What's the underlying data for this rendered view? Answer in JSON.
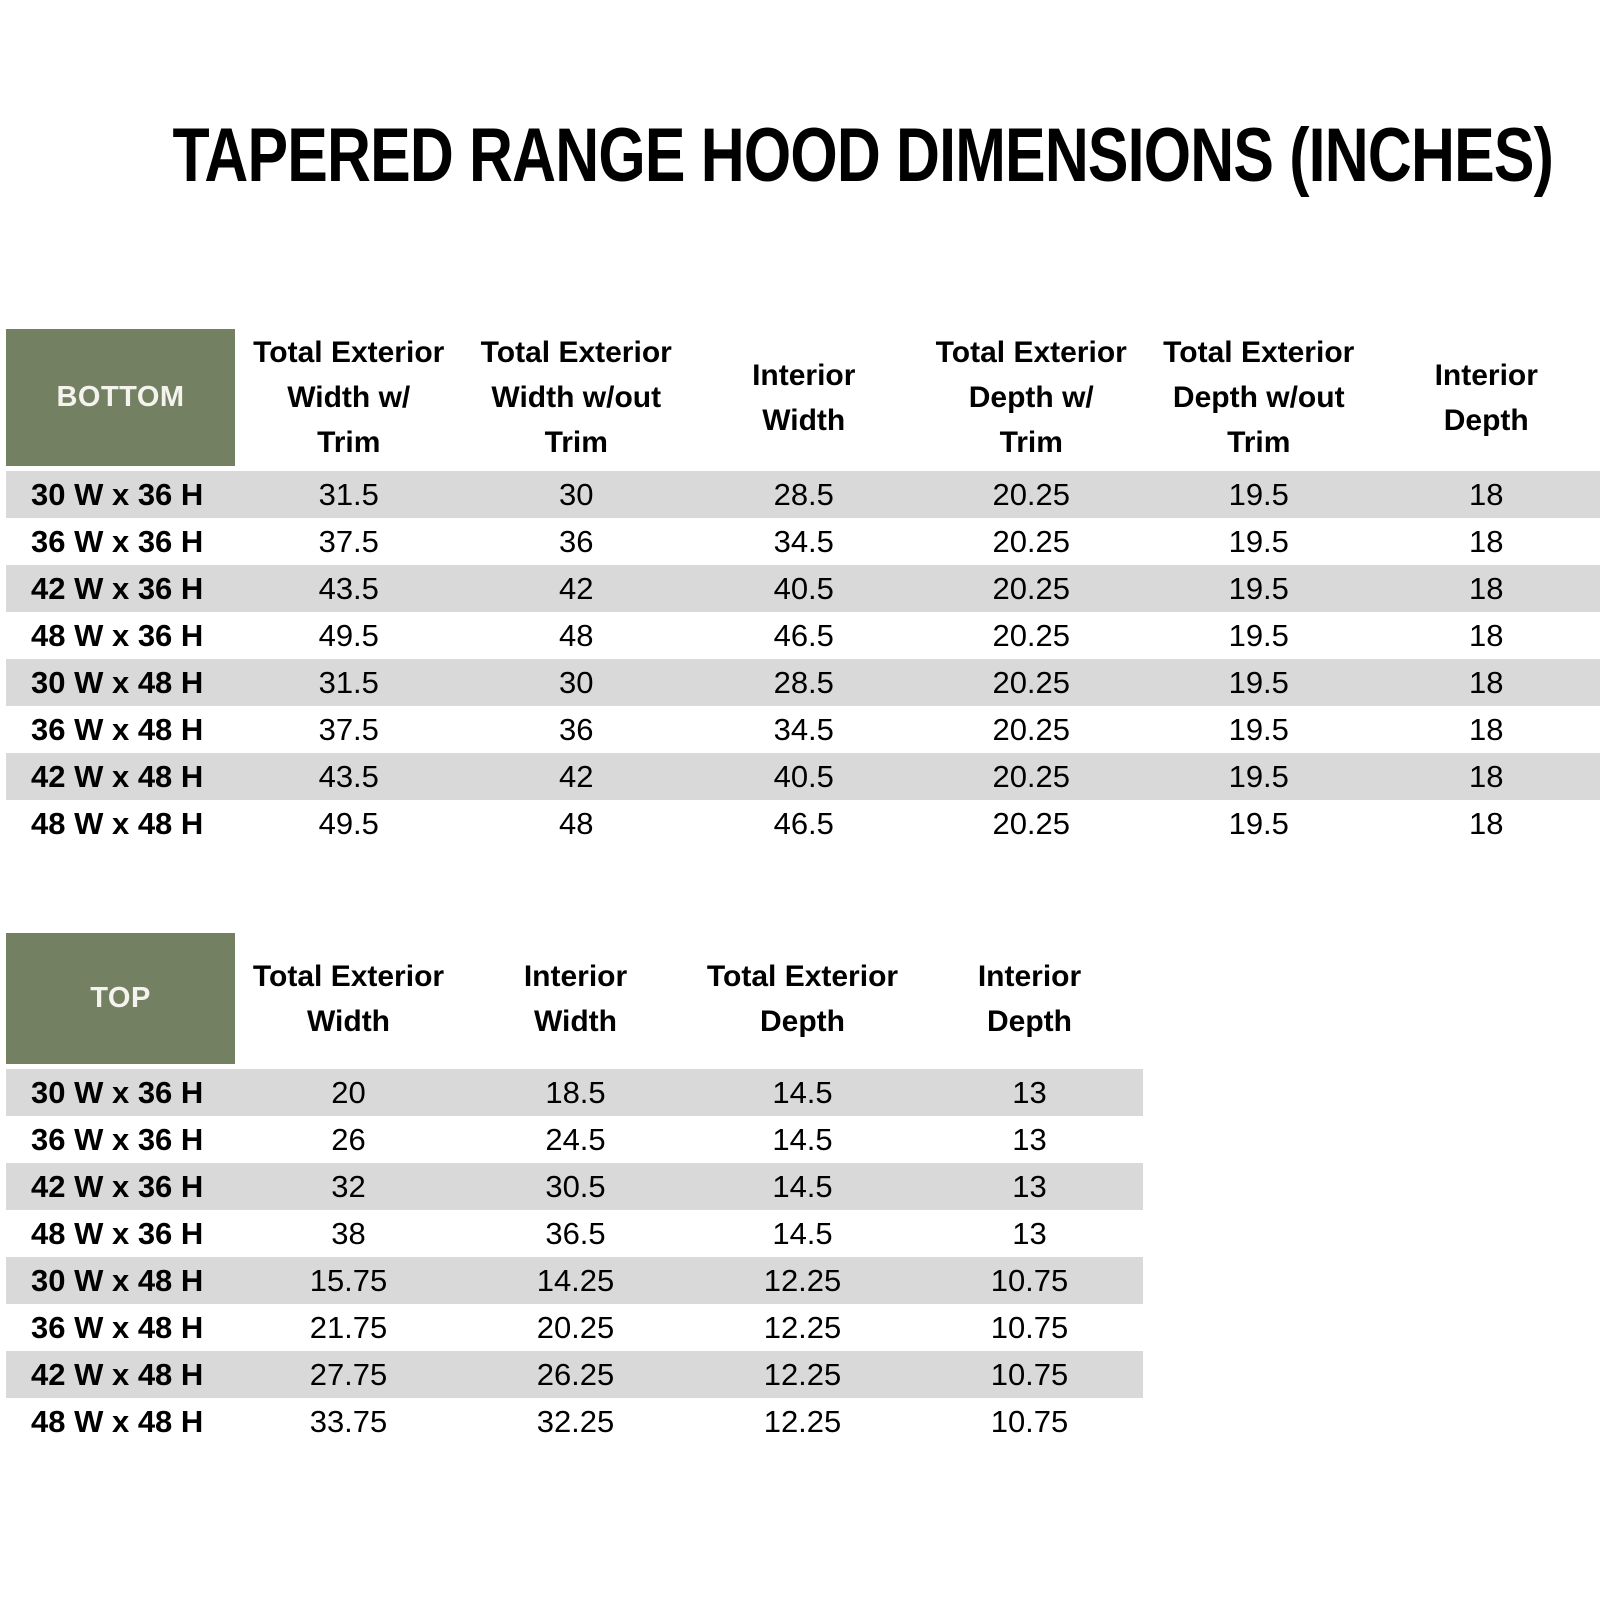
{
  "title": "TAPERED RANGE HOOD DIMENSIONS (INCHES)",
  "colors": {
    "header_block_bg": "#738061",
    "header_block_text": "#F4F3EE",
    "row_alt_bg": "#D9D9D9",
    "row_bg": "#FFFFFF",
    "text": "#000000"
  },
  "bottom_table": {
    "corner_label": "BOTTOM",
    "columns": [
      "Total Exterior\nWidth w/\nTrim",
      "Total Exterior\nWidth w/out\nTrim",
      "Interior\nWidth",
      "Total Exterior\nDepth w/\nTrim",
      "Total Exterior\nDepth w/out\nTrim",
      "Interior\nDepth"
    ],
    "rows": [
      {
        "label": "30 W x 36 H",
        "values": [
          "31.5",
          "30",
          "28.5",
          "20.25",
          "19.5",
          "18"
        ]
      },
      {
        "label": "36 W x 36 H",
        "values": [
          "37.5",
          "36",
          "34.5",
          "20.25",
          "19.5",
          "18"
        ]
      },
      {
        "label": "42 W x 36 H",
        "values": [
          "43.5",
          "42",
          "40.5",
          "20.25",
          "19.5",
          "18"
        ]
      },
      {
        "label": "48 W x 36 H",
        "values": [
          "49.5",
          "48",
          "46.5",
          "20.25",
          "19.5",
          "18"
        ]
      },
      {
        "label": "30 W x 48 H",
        "values": [
          "31.5",
          "30",
          "28.5",
          "20.25",
          "19.5",
          "18"
        ]
      },
      {
        "label": "36 W x 48 H",
        "values": [
          "37.5",
          "36",
          "34.5",
          "20.25",
          "19.5",
          "18"
        ]
      },
      {
        "label": "42 W x 48 H",
        "values": [
          "43.5",
          "42",
          "40.5",
          "20.25",
          "19.5",
          "18"
        ]
      },
      {
        "label": "48 W x 48 H",
        "values": [
          "49.5",
          "48",
          "46.5",
          "20.25",
          "19.5",
          "18"
        ]
      }
    ]
  },
  "top_table": {
    "corner_label": "TOP",
    "columns": [
      "Total Exterior\nWidth",
      "Interior\nWidth",
      "Total Exterior\nDepth",
      "Interior\nDepth"
    ],
    "rows": [
      {
        "label": "30 W x 36 H",
        "values": [
          "20",
          "18.5",
          "14.5",
          "13"
        ]
      },
      {
        "label": "36 W x 36 H",
        "values": [
          "26",
          "24.5",
          "14.5",
          "13"
        ]
      },
      {
        "label": "42 W x 36 H",
        "values": [
          "32",
          "30.5",
          "14.5",
          "13"
        ]
      },
      {
        "label": "48 W x 36 H",
        "values": [
          "38",
          "36.5",
          "14.5",
          "13"
        ]
      },
      {
        "label": "30 W x 48 H",
        "values": [
          "15.75",
          "14.25",
          "12.25",
          "10.75"
        ]
      },
      {
        "label": "36 W x 48 H",
        "values": [
          "21.75",
          "20.25",
          "12.25",
          "10.75"
        ]
      },
      {
        "label": "42 W x 48 H",
        "values": [
          "27.75",
          "26.25",
          "12.25",
          "10.75"
        ]
      },
      {
        "label": "48 W x 48 H",
        "values": [
          "33.75",
          "32.25",
          "12.25",
          "10.75"
        ]
      }
    ]
  }
}
